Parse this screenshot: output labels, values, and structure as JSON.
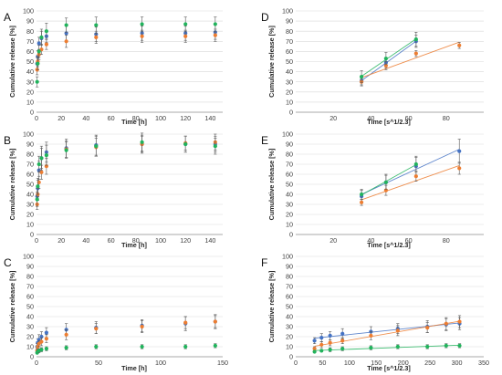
{
  "colors": {
    "blue": "#4472c4",
    "orange": "#ed7d31",
    "green": "#21b35c",
    "axis": "#8c8c8c",
    "grid": "#d9d9d9",
    "error": "#595959"
  },
  "chart_data": [
    {
      "panel": "A",
      "type": "scatter",
      "xlabel": "Time [h]",
      "ylabel": "Cumulative release [%]",
      "xlim": [
        0,
        150
      ],
      "ylim": [
        0,
        100
      ],
      "xticks": [
        0,
        20,
        40,
        60,
        80,
        100,
        120,
        140
      ],
      "yticks": [
        0,
        10,
        20,
        30,
        40,
        50,
        60,
        70,
        80,
        90,
        100
      ],
      "grid": "horizontal",
      "series": [
        {
          "color": "blue",
          "x": [
            0.5,
            1,
            2,
            4,
            8,
            24,
            48,
            85,
            120,
            144
          ],
          "y": [
            48,
            55,
            68,
            73,
            75,
            78,
            77,
            78,
            78,
            79
          ],
          "err": [
            6,
            6,
            6,
            7,
            6,
            7,
            7,
            7,
            7,
            7
          ]
        },
        {
          "color": "orange",
          "x": [
            0.5,
            1,
            2,
            4,
            8,
            24,
            48,
            85,
            120,
            144
          ],
          "y": [
            42,
            50,
            57,
            62,
            67,
            70,
            74,
            75,
            75,
            76
          ],
          "err": [
            5,
            5,
            5,
            5,
            5,
            6,
            6,
            6,
            6,
            6
          ]
        },
        {
          "color": "green",
          "x": [
            0.5,
            1,
            2,
            4,
            8,
            24,
            48,
            85,
            120,
            144
          ],
          "y": [
            30,
            48,
            60,
            74,
            80,
            86,
            86,
            87,
            87,
            87
          ],
          "err": [
            5,
            6,
            6,
            8,
            8,
            7,
            8,
            7,
            7,
            7
          ]
        }
      ]
    },
    {
      "panel": "B",
      "type": "scatter",
      "xlabel": "Time [h]",
      "ylabel": "Cumulative release [%]",
      "xlim": [
        0,
        150
      ],
      "ylim": [
        0,
        100
      ],
      "xticks": [
        0,
        20,
        40,
        60,
        80,
        100,
        120,
        140
      ],
      "yticks": [
        0,
        10,
        20,
        30,
        40,
        50,
        60,
        70,
        80,
        90,
        100
      ],
      "grid": "horizontal",
      "series": [
        {
          "color": "blue",
          "x": [
            0.5,
            1,
            2,
            4,
            8,
            24,
            48,
            85,
            120,
            144
          ],
          "y": [
            38,
            46,
            64,
            76,
            82,
            86,
            89,
            90,
            90,
            90
          ],
          "err": [
            8,
            8,
            9,
            12,
            10,
            9,
            10,
            9,
            8,
            8
          ]
        },
        {
          "color": "orange",
          "x": [
            0.5,
            1,
            2,
            4,
            8,
            24,
            48,
            85,
            120,
            144
          ],
          "y": [
            30,
            40,
            52,
            62,
            68,
            85,
            87,
            90,
            91,
            92
          ],
          "err": [
            5,
            6,
            6,
            7,
            8,
            8,
            9,
            8,
            7,
            8
          ]
        },
        {
          "color": "green",
          "x": [
            0.5,
            1,
            2,
            4,
            8,
            24,
            48,
            85,
            120,
            144
          ],
          "y": [
            35,
            48,
            70,
            76,
            79,
            84,
            88,
            92,
            90,
            88
          ],
          "err": [
            7,
            8,
            8,
            10,
            10,
            8,
            10,
            9,
            8,
            8
          ]
        }
      ]
    },
    {
      "panel": "C",
      "type": "scatter",
      "xlabel": "Time [h]",
      "ylabel": "Cumulative release [%]",
      "xlim": [
        0,
        150
      ],
      "ylim": [
        0,
        100
      ],
      "xticks": [
        0,
        50,
        100,
        150
      ],
      "yticks": [
        0,
        10,
        20,
        30,
        40,
        50,
        60,
        70,
        80,
        90,
        100
      ],
      "grid": "horizontal",
      "series": [
        {
          "color": "blue",
          "x": [
            0.5,
            1,
            2,
            4,
            8,
            24,
            48,
            85,
            120,
            144
          ],
          "y": [
            10,
            14,
            17,
            20,
            24,
            27,
            29,
            31,
            33,
            35
          ],
          "err": [
            3,
            4,
            5,
            5,
            5,
            6,
            6,
            6,
            7,
            7
          ]
        },
        {
          "color": "orange",
          "x": [
            0.5,
            1,
            2,
            4,
            8,
            24,
            48,
            85,
            120,
            144
          ],
          "y": [
            6,
            10,
            13,
            15,
            18,
            22,
            28,
            30,
            34,
            35
          ],
          "err": [
            2,
            3,
            3,
            4,
            4,
            5,
            5,
            6,
            6,
            6
          ]
        },
        {
          "color": "green",
          "x": [
            0.5,
            1,
            2,
            4,
            8,
            24,
            48,
            85,
            120,
            144
          ],
          "y": [
            4,
            5,
            6,
            7,
            8,
            9,
            10,
            10,
            10,
            11
          ],
          "err": [
            1,
            1,
            2,
            2,
            2,
            2,
            2,
            2,
            2,
            2
          ]
        }
      ]
    },
    {
      "panel": "D",
      "type": "scatter",
      "xlabel": "Time [s^1/2.3]",
      "ylabel": "Cumulative release [%]",
      "xlim": [
        0,
        100
      ],
      "ylim": [
        0,
        100
      ],
      "xticks": [
        20,
        40,
        60,
        80
      ],
      "yticks": [
        0,
        10,
        20,
        30,
        40,
        50,
        60,
        70,
        80,
        90,
        100
      ],
      "grid": "horizontal",
      "trendline": true,
      "series": [
        {
          "color": "blue",
          "x": [
            35,
            48,
            64
          ],
          "y": [
            31,
            49,
            70
          ],
          "err": [
            5,
            5,
            6
          ]
        },
        {
          "color": "orange",
          "x": [
            35,
            48,
            64,
            87
          ],
          "y": [
            30,
            46,
            58,
            66
          ],
          "err": [
            3,
            4,
            3,
            3
          ]
        },
        {
          "color": "green",
          "x": [
            35,
            48,
            64
          ],
          "y": [
            35,
            53,
            72
          ],
          "err": [
            6,
            6,
            7
          ]
        }
      ]
    },
    {
      "panel": "E",
      "type": "scatter",
      "xlabel": "Time [s^1/2.3]",
      "ylabel": "Cumulative release [%]",
      "xlim": [
        0,
        100
      ],
      "ylim": [
        0,
        100
      ],
      "xticks": [
        20,
        40,
        60,
        80
      ],
      "yticks": [
        0,
        10,
        20,
        30,
        40,
        50,
        60,
        70,
        80,
        90,
        100
      ],
      "grid": "horizontal",
      "trendline": true,
      "series": [
        {
          "color": "blue",
          "x": [
            35,
            48,
            64,
            87
          ],
          "y": [
            38,
            52,
            68,
            83
          ],
          "err": [
            6,
            8,
            9,
            12
          ]
        },
        {
          "color": "orange",
          "x": [
            35,
            48,
            64,
            87
          ],
          "y": [
            32,
            44,
            58,
            66
          ],
          "err": [
            3,
            5,
            5,
            6
          ]
        },
        {
          "color": "green",
          "x": [
            35,
            48,
            64
          ],
          "y": [
            40,
            52,
            70
          ],
          "err": [
            5,
            7,
            8
          ]
        }
      ]
    },
    {
      "panel": "F",
      "type": "scatter",
      "xlabel": "Time [s^1/2.3]",
      "ylabel": "Cumulative release [%]",
      "xlim": [
        0,
        350
      ],
      "ylim": [
        0,
        100
      ],
      "xticks": [
        0,
        50,
        100,
        150,
        200,
        250,
        300,
        350
      ],
      "yticks": [
        0,
        10,
        20,
        30,
        40,
        50,
        60,
        70,
        80,
        90,
        100
      ],
      "grid": "horizontal",
      "trendline": true,
      "series": [
        {
          "color": "blue",
          "x": [
            35,
            48,
            64,
            87,
            140,
            190,
            245,
            280,
            305
          ],
          "y": [
            16,
            19,
            21,
            23,
            25,
            28,
            30,
            32,
            33
          ],
          "err": [
            3,
            4,
            4,
            5,
            5,
            5,
            6,
            6,
            6
          ]
        },
        {
          "color": "orange",
          "x": [
            35,
            48,
            64,
            87,
            140,
            190,
            245,
            280,
            305
          ],
          "y": [
            8,
            12,
            14,
            16,
            21,
            26,
            29,
            33,
            35
          ],
          "err": [
            2,
            3,
            3,
            3,
            4,
            5,
            5,
            6,
            6
          ]
        },
        {
          "color": "green",
          "x": [
            35,
            48,
            64,
            87,
            140,
            190,
            245,
            280,
            305
          ],
          "y": [
            5,
            6,
            7,
            8,
            9,
            10,
            10,
            11,
            11
          ],
          "err": [
            1,
            1,
            2,
            2,
            2,
            2,
            2,
            2,
            2
          ]
        }
      ]
    }
  ]
}
